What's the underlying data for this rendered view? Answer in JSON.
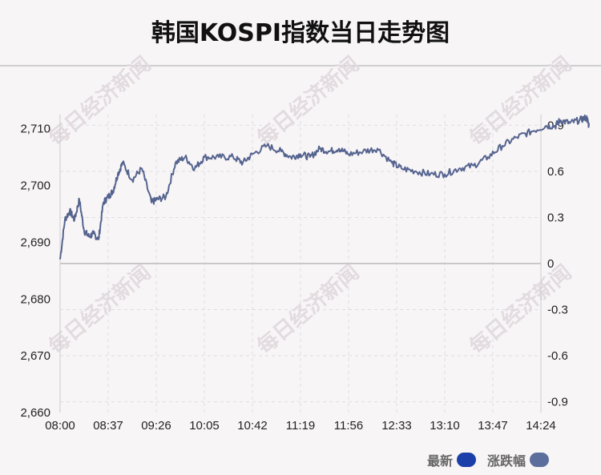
{
  "title": "韩国KOSPI指数当日走势图",
  "watermark": "每日经济新闻",
  "legend": [
    {
      "label": "最新",
      "color": "#1a3fa8"
    },
    {
      "label": "涨跌幅",
      "color": "#5c6e9c"
    }
  ],
  "chart_data": {
    "type": "line",
    "line_color": "#55648f",
    "x_tick_labels": [
      "08:00",
      "08:37",
      "09:26",
      "10:05",
      "10:42",
      "11:19",
      "11:56",
      "12:33",
      "13:10",
      "13:47",
      "14:24"
    ],
    "y_left_ticks": [
      2710,
      2700,
      2690,
      2680,
      2670,
      2660
    ],
    "y_left_tick_labels": [
      "2,710",
      "2,700",
      "2,690",
      "2,680",
      "2,670",
      "2,660"
    ],
    "y_left_range": [
      2660,
      2712.5
    ],
    "y_right_ticks": [
      0.9,
      0.6,
      0.3,
      0,
      -0.3,
      -0.6,
      -0.9
    ],
    "y_right_tick_labels": [
      "0.9",
      "0.6",
      "0.3",
      "0",
      "-0.3",
      "-0.6",
      "-0.9"
    ],
    "y_right_range": [
      -0.97,
      0.97
    ],
    "baseline": 2686,
    "grid": true,
    "series": [
      {
        "x": [
          0,
          0.1,
          0.2,
          0.3,
          0.4,
          0.5,
          0.6,
          0.7,
          0.8,
          0.9,
          1.0,
          1.1,
          1.2,
          1.3,
          1.5,
          1.7,
          1.9,
          2.0,
          2.2,
          2.4,
          2.6,
          2.8,
          3.0,
          3.3,
          3.6,
          3.8,
          4.0,
          4.3,
          4.6,
          4.8,
          5.0,
          5.2,
          5.4,
          5.6,
          5.8,
          6.0,
          6.3,
          6.6,
          6.9,
          7.1,
          7.4,
          7.7,
          8.0,
          8.3,
          8.6,
          8.9,
          9.2,
          9.5,
          9.8,
          10.1,
          10.3,
          10.4,
          10.6,
          10.8,
          10.95,
          11.0
        ],
        "y": [
          2687,
          2694,
          2695.5,
          2694,
          2697.5,
          2692,
          2691,
          2691.5,
          2690.5,
          2697,
          2698,
          2699,
          2702,
          2704,
          2701,
          2703,
          2697,
          2697.5,
          2698,
          2704,
          2705,
          2703,
          2705,
          2705,
          2705,
          2704,
          2705.5,
          2707,
          2706,
          2705,
          2705.5,
          2705,
          2706.5,
          2706,
          2706.5,
          2705.5,
          2706,
          2706.5,
          2704,
          2703,
          2702.5,
          2702,
          2702,
          2703,
          2703.5,
          2705,
          2707,
          2708.5,
          2709.5,
          2710.5,
          2710.5,
          2711.5,
          2711,
          2711.5,
          2712,
          2710.5
        ]
      }
    ]
  }
}
